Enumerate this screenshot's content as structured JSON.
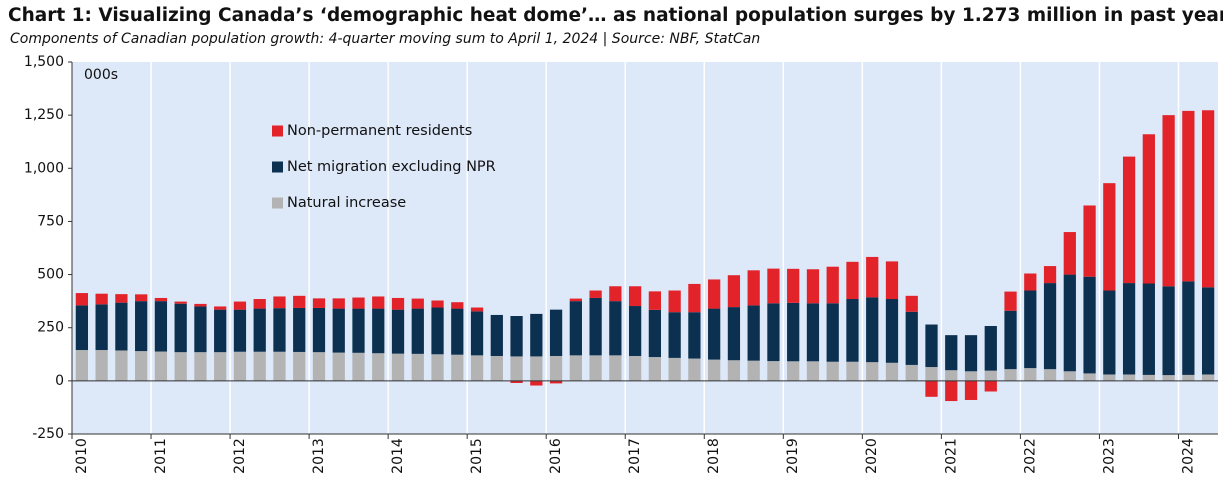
{
  "chart_data": {
    "type": "stacked_bar",
    "title": "Chart 1: Visualizing Canada’s ‘demographic heat dome’… as national population surges by 1.273 million in past year",
    "subtitle": "Components of Canadian population growth: 4-quarter moving sum to April 1, 2024  |  Source: NBF, StatCan",
    "unit_label": "000s",
    "categories": [
      "2010",
      null,
      null,
      null,
      "2011",
      null,
      null,
      null,
      "2012",
      null,
      null,
      null,
      "2013",
      null,
      null,
      null,
      "2014",
      null,
      null,
      null,
      "2015",
      null,
      null,
      null,
      "2016",
      null,
      null,
      null,
      "2017",
      null,
      null,
      null,
      "2018",
      null,
      null,
      null,
      "2019",
      null,
      null,
      null,
      "2020",
      null,
      null,
      null,
      "2021",
      null,
      null,
      null,
      "2022",
      null,
      null,
      null,
      "2023",
      null,
      null,
      null,
      "2024",
      null
    ],
    "series": [
      {
        "name": "Natural increase",
        "color": "#b3b3b3",
        "values": [
          145,
          145,
          143,
          140,
          138,
          135,
          135,
          135,
          137,
          137,
          137,
          136,
          135,
          133,
          132,
          130,
          128,
          127,
          125,
          123,
          120,
          117,
          115,
          115,
          117,
          120,
          120,
          120,
          117,
          112,
          108,
          105,
          100,
          97,
          95,
          93,
          92,
          92,
          90,
          90,
          88,
          85,
          75,
          65,
          50,
          45,
          48,
          55,
          60,
          55,
          45,
          35,
          30,
          30,
          28,
          27,
          28,
          30
        ]
      },
      {
        "name": "Net migration excluding NPR",
        "color": "#0c304f",
        "values": [
          210,
          215,
          225,
          235,
          237,
          228,
          215,
          200,
          198,
          203,
          205,
          207,
          208,
          207,
          208,
          210,
          207,
          213,
          220,
          217,
          207,
          193,
          190,
          200,
          218,
          255,
          270,
          255,
          235,
          222,
          215,
          218,
          240,
          250,
          260,
          272,
          275,
          273,
          275,
          295,
          305,
          300,
          250,
          200,
          165,
          170,
          210,
          275,
          365,
          405,
          455,
          455,
          395,
          430,
          430,
          418,
          440,
          410
        ]
      },
      {
        "name": "Non-permanent residents",
        "color": "#e3232a",
        "values": [
          58,
          50,
          40,
          32,
          15,
          10,
          12,
          15,
          38,
          45,
          55,
          57,
          45,
          48,
          52,
          57,
          55,
          47,
          33,
          30,
          18,
          0,
          -10,
          -22,
          -12,
          12,
          35,
          70,
          93,
          87,
          102,
          133,
          137,
          150,
          165,
          163,
          160,
          160,
          172,
          175,
          190,
          177,
          75,
          -75,
          -95,
          -90,
          -50,
          90,
          80,
          80,
          200,
          335,
          505,
          595,
          702,
          805,
          802,
          833
        ]
      }
    ],
    "ylim": [
      -250,
      1500
    ],
    "yticks": [
      -250,
      0,
      250,
      500,
      750,
      {
        "value": 1000,
        "label": "1,000"
      },
      {
        "value": 1250,
        "label": "1,250"
      },
      {
        "value": 1500,
        "label": "1,500"
      }
    ],
    "legend": "upper-left",
    "background": "#dde8f9"
  }
}
